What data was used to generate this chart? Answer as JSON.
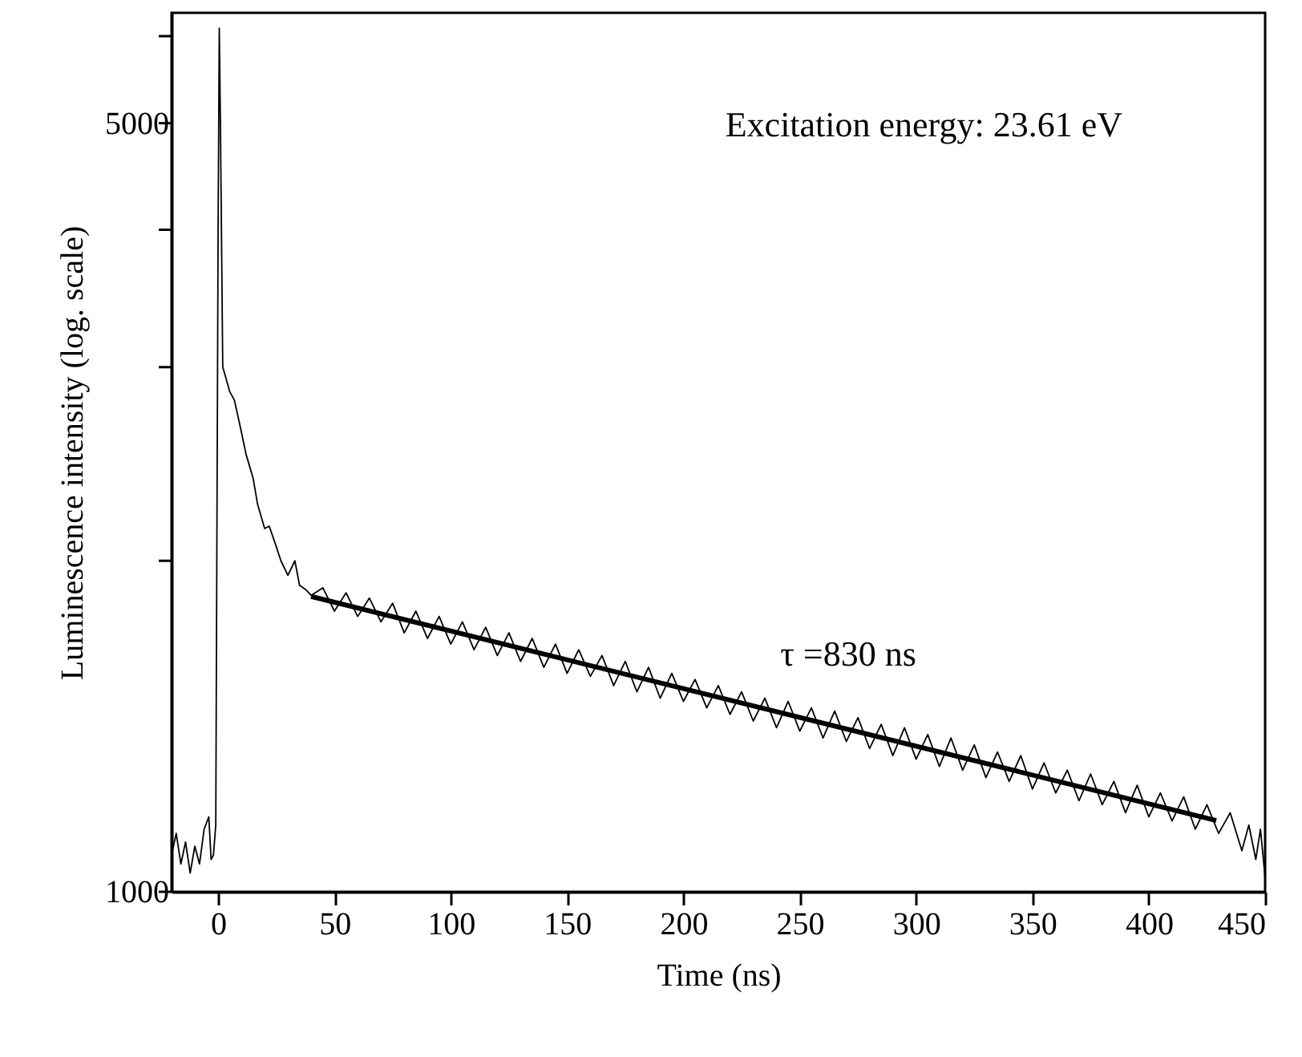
{
  "chart_data": {
    "type": "line",
    "xlabel": "Time (ns)",
    "ylabel": "Luminescence intensity (log. scale)",
    "log": true,
    "grid": false,
    "marker": "none",
    "line_style": "solid",
    "xlim": [
      -20,
      450
    ],
    "xticks": [
      0,
      50,
      100,
      150,
      200,
      250,
      300,
      350,
      400,
      450
    ],
    "ylim": [
      1000,
      6300
    ],
    "yticks": [
      1000,
      {
        "value": 2000,
        "label": null
      },
      {
        "value": 3000,
        "label": null
      },
      {
        "value": 4000,
        "label": null
      },
      5000,
      {
        "value": 6000,
        "label": null
      }
    ],
    "annotations": [
      "Excitation energy: 23.61 eV",
      "τ =830 ns"
    ],
    "series": [
      {
        "color": "#000000",
        "x": [
          -20,
          -18,
          -16,
          -14,
          -12,
          -10,
          -8,
          -6,
          -4,
          -3,
          -2,
          -1,
          0,
          0.5,
          1,
          2,
          3,
          5,
          7,
          10,
          12,
          15,
          17,
          20,
          22,
          25,
          27,
          30,
          33,
          35,
          38,
          40,
          45,
          50,
          55,
          60,
          65,
          70,
          75,
          80,
          85,
          90,
          95,
          100,
          105,
          110,
          115,
          120,
          125,
          130,
          135,
          140,
          145,
          150,
          155,
          160,
          165,
          170,
          175,
          180,
          185,
          190,
          195,
          200,
          205,
          210,
          215,
          220,
          225,
          230,
          235,
          240,
          245,
          250,
          255,
          260,
          265,
          270,
          275,
          280,
          285,
          290,
          295,
          300,
          305,
          310,
          315,
          320,
          325,
          330,
          335,
          340,
          345,
          350,
          355,
          360,
          365,
          370,
          375,
          380,
          385,
          390,
          395,
          400,
          405,
          410,
          415,
          420,
          425,
          430,
          435,
          440,
          443,
          446,
          448,
          450
        ],
        "values": [
          1080,
          1130,
          1060,
          1110,
          1040,
          1100,
          1060,
          1140,
          1170,
          1070,
          1080,
          1150,
          4000,
          6100,
          5000,
          3000,
          2950,
          2850,
          2800,
          2620,
          2500,
          2380,
          2250,
          2140,
          2150,
          2060,
          2000,
          1940,
          2000,
          1900,
          1880,
          1860,
          1890,
          1800,
          1870,
          1780,
          1850,
          1760,
          1830,
          1720,
          1800,
          1700,
          1780,
          1680,
          1760,
          1660,
          1740,
          1640,
          1720,
          1620,
          1700,
          1600,
          1680,
          1580,
          1660,
          1570,
          1640,
          1540,
          1620,
          1520,
          1600,
          1500,
          1580,
          1490,
          1560,
          1470,
          1540,
          1450,
          1520,
          1430,
          1500,
          1410,
          1490,
          1400,
          1470,
          1380,
          1460,
          1370,
          1440,
          1350,
          1420,
          1330,
          1410,
          1320,
          1390,
          1300,
          1380,
          1290,
          1360,
          1270,
          1340,
          1260,
          1330,
          1240,
          1310,
          1230,
          1290,
          1210,
          1280,
          1200,
          1260,
          1180,
          1250,
          1170,
          1230,
          1160,
          1220,
          1140,
          1200,
          1130,
          1180,
          1090,
          1150,
          1070,
          1140,
          1030
        ]
      },
      {
        "type": "line",
        "color": "#000000",
        "x": [
          40,
          429
        ],
        "values": [
          1856,
          1161
        ]
      }
    ]
  }
}
